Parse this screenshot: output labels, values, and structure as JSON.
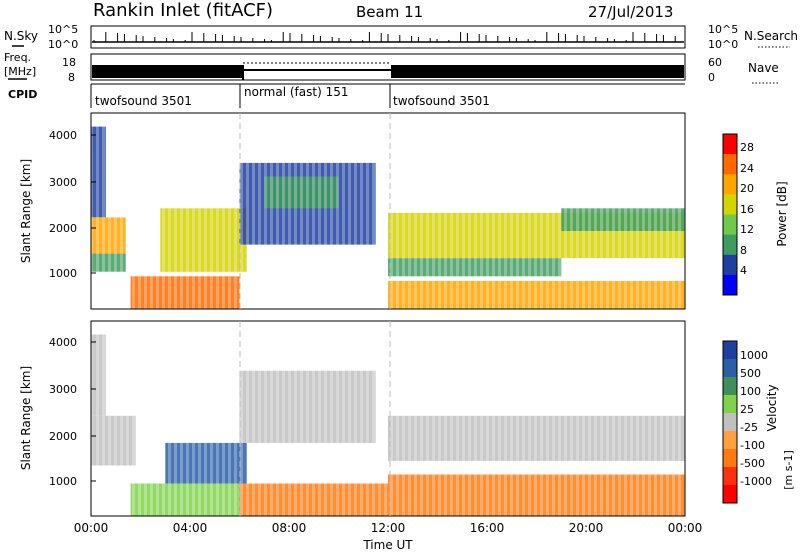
{
  "header": {
    "title": "Rankin Inlet (fitACF)",
    "beam": "Beam 11",
    "date": "27/Jul/2013"
  },
  "top_panels": {
    "nsky_label": "N.Sky",
    "nsearch_label": "N.Search",
    "count_ticks": [
      "10^5",
      "10^0"
    ],
    "freq_label_1": "Freq.",
    "freq_label_2": "[MHz]",
    "freq_ticks": [
      "18",
      "8"
    ],
    "nave_label": "Nave",
    "nave_ticks": [
      "60",
      "0"
    ],
    "cpid_label": "CPID",
    "cpid_segments": [
      {
        "label": "twofsound 3501",
        "start_hour": 0,
        "end_hour": 6
      },
      {
        "label": "normal (fast) 151",
        "start_hour": 6,
        "end_hour": 12
      },
      {
        "label": "twofsound 3501",
        "start_hour": 12,
        "end_hour": 24
      }
    ]
  },
  "power_panel": {
    "ylabel": "Slant Range [km]",
    "yticks": [
      "4000",
      "3000",
      "2000",
      "1000"
    ],
    "colorbar_label": "Power [dB]",
    "colorbar_ticks": [
      "28",
      "24",
      "20",
      "16",
      "12",
      "8",
      "4"
    ],
    "colorbar_colors": [
      "#ff0000",
      "#ff6a00",
      "#ffa500",
      "#d4d400",
      "#6fc94a",
      "#3e9c5e",
      "#1f3fa0",
      "#0000ff"
    ]
  },
  "velocity_panel": {
    "ylabel": "Slant Range [km]",
    "yticks": [
      "4000",
      "3000",
      "2000",
      "1000"
    ],
    "colorbar_label": "Velocity",
    "colorbar_units": "[m s-1]",
    "colorbar_ticks": [
      "1000",
      "500",
      "100",
      "25",
      "-25",
      "-100",
      "-500",
      "-1000"
    ],
    "colorbar_colors": [
      "#1f3fa0",
      "#2a5ea8",
      "#3f8f5a",
      "#7fd24a",
      "#c0c0c0",
      "#ffa040",
      "#ff7a10",
      "#ff3010",
      "#ff0000"
    ]
  },
  "xaxis": {
    "xlabel": "Time UT",
    "ticks": [
      "00:00",
      "04:00",
      "08:00",
      "12:00",
      "16:00",
      "20:00",
      "00:00"
    ]
  },
  "chart_data": [
    {
      "type": "heatmap",
      "title": "Rankin Inlet (fitACF)",
      "subtitle": "Beam 11",
      "xlabel": "Time UT",
      "ylabel": "Slant Range [km]",
      "xlim_hours": [
        0,
        24
      ],
      "ylim_km": [
        180,
        4500
      ],
      "colorbar": {
        "label": "Power [dB]",
        "range": [
          0,
          30
        ]
      },
      "regions": [
        {
          "t0": 0.0,
          "t1": 1.4,
          "r0": 1400,
          "r1": 2200,
          "value": 20
        },
        {
          "t0": 0.0,
          "t1": 1.4,
          "r0": 1000,
          "r1": 1400,
          "value": 10
        },
        {
          "t0": 0.0,
          "t1": 0.6,
          "r0": 2200,
          "r1": 4200,
          "value": 6
        },
        {
          "t0": 1.6,
          "t1": 6.0,
          "r0": 180,
          "r1": 900,
          "value": 26
        },
        {
          "t0": 2.8,
          "t1": 6.3,
          "r0": 1000,
          "r1": 2400,
          "value": 18
        },
        {
          "t0": 6.0,
          "t1": 11.5,
          "r0": 1600,
          "r1": 3400,
          "value": 6
        },
        {
          "t0": 7.0,
          "t1": 10.0,
          "r0": 2400,
          "r1": 3100,
          "value": 10
        },
        {
          "t0": 12.0,
          "t1": 24.0,
          "r0": 1300,
          "r1": 2300,
          "value": 17
        },
        {
          "t0": 12.0,
          "t1": 24.0,
          "r0": 180,
          "r1": 800,
          "value": 22
        },
        {
          "t0": 12.0,
          "t1": 19.0,
          "r0": 900,
          "r1": 1300,
          "value": 10
        },
        {
          "t0": 19.0,
          "t1": 24.0,
          "r0": 1900,
          "r1": 2400,
          "value": 8
        }
      ]
    },
    {
      "type": "heatmap",
      "xlabel": "Time UT",
      "ylabel": "Slant Range [km]",
      "xlim_hours": [
        0,
        24
      ],
      "ylim_km": [
        180,
        4500
      ],
      "colorbar": {
        "label": "Velocity [m s-1]",
        "range": [
          -1000,
          1000
        ]
      },
      "regions": [
        {
          "t0": 0.0,
          "t1": 1.8,
          "r0": 1300,
          "r1": 2400,
          "value": 0
        },
        {
          "t0": 0.0,
          "t1": 0.6,
          "r0": 2400,
          "r1": 4200,
          "value": 0
        },
        {
          "t0": 1.6,
          "t1": 6.0,
          "r0": 180,
          "r1": 900,
          "value": 60
        },
        {
          "t0": 3.0,
          "t1": 6.3,
          "r0": 900,
          "r1": 1800,
          "value": 600
        },
        {
          "t0": 6.0,
          "t1": 11.5,
          "r0": 1800,
          "r1": 3400,
          "value": 0
        },
        {
          "t0": 6.0,
          "t1": 12.0,
          "r0": 180,
          "r1": 900,
          "value": -200
        },
        {
          "t0": 12.0,
          "t1": 24.0,
          "r0": 1400,
          "r1": 2400,
          "value": 0
        },
        {
          "t0": 12.0,
          "t1": 24.0,
          "r0": 180,
          "r1": 1100,
          "value": -400
        }
      ]
    }
  ]
}
